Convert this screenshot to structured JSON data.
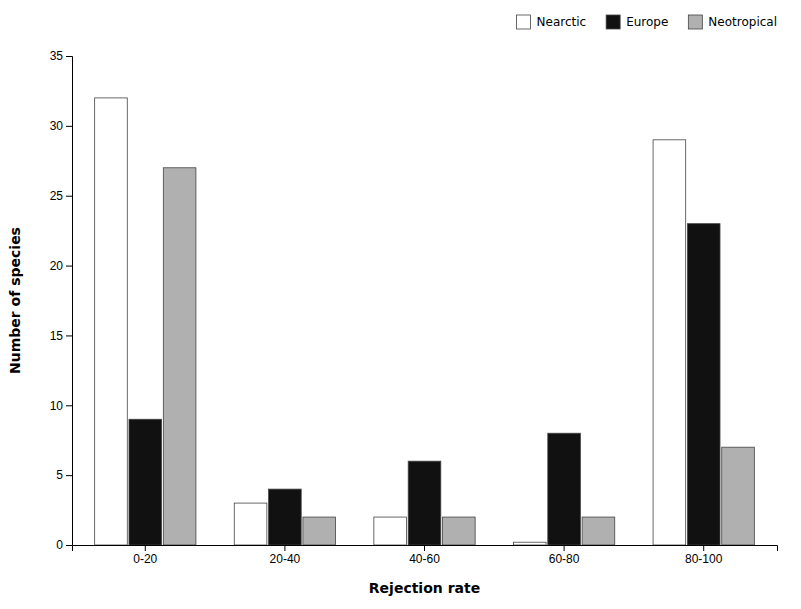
{
  "chart_data": {
    "type": "bar",
    "xlabel": "Rejection rate",
    "ylabel": "Number of species",
    "categories": [
      "0-20",
      "20-40",
      "40-60",
      "60-80",
      "80-100"
    ],
    "series": [
      {
        "name": "Nearctic",
        "color": "#ffffff",
        "values": [
          32,
          3,
          2,
          0.2,
          29
        ]
      },
      {
        "name": "Europe",
        "color": "#111111",
        "values": [
          9,
          4,
          6,
          8,
          23
        ]
      },
      {
        "name": "Neotropical",
        "color": "#b0b0b0",
        "values": [
          27,
          2,
          2,
          2,
          7
        ]
      }
    ],
    "ylim": [
      0,
      35
    ],
    "yticks": [
      0,
      5,
      10,
      15,
      20,
      25,
      30,
      35
    ],
    "grid": false,
    "legend": "upper right"
  }
}
